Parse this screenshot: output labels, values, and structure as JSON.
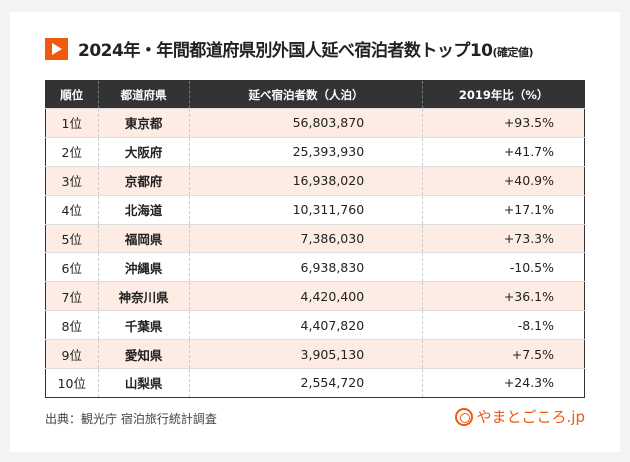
{
  "title": {
    "main": "2024年・年間都道府県別外国人延べ宿泊者数トップ10",
    "suffix": "(確定値)"
  },
  "table": {
    "headers": [
      "順位",
      "都道府県",
      "延べ宿泊者数（人泊）",
      "2019年比（%）"
    ],
    "rows": [
      [
        "1位",
        "東京都",
        "56,803,870",
        "+93.5%"
      ],
      [
        "2位",
        "大阪府",
        "25,393,930",
        "+41.7%"
      ],
      [
        "3位",
        "京都府",
        "16,938,020",
        "+40.9%"
      ],
      [
        "4位",
        "北海道",
        "10,311,760",
        "+17.1%"
      ],
      [
        "5位",
        "福岡県",
        "7,386,030",
        "+73.3%"
      ],
      [
        "6位",
        "沖縄県",
        "6,938,830",
        "-10.5%"
      ],
      [
        "7位",
        "神奈川県",
        "4,420,400",
        "+36.1%"
      ],
      [
        "8位",
        "千葉県",
        "4,407,820",
        "-8.1%"
      ],
      [
        "9位",
        "愛知県",
        "3,905,130",
        "+7.5%"
      ],
      [
        "10位",
        "山梨県",
        "2,554,720",
        "+24.3%"
      ]
    ]
  },
  "source": "出典：観光庁 宿泊旅行統計調査",
  "logo": "やまとごころ.jp",
  "colors": {
    "accent": "#ef5a0f",
    "header": "#333333",
    "stripe": "#fdece3"
  }
}
